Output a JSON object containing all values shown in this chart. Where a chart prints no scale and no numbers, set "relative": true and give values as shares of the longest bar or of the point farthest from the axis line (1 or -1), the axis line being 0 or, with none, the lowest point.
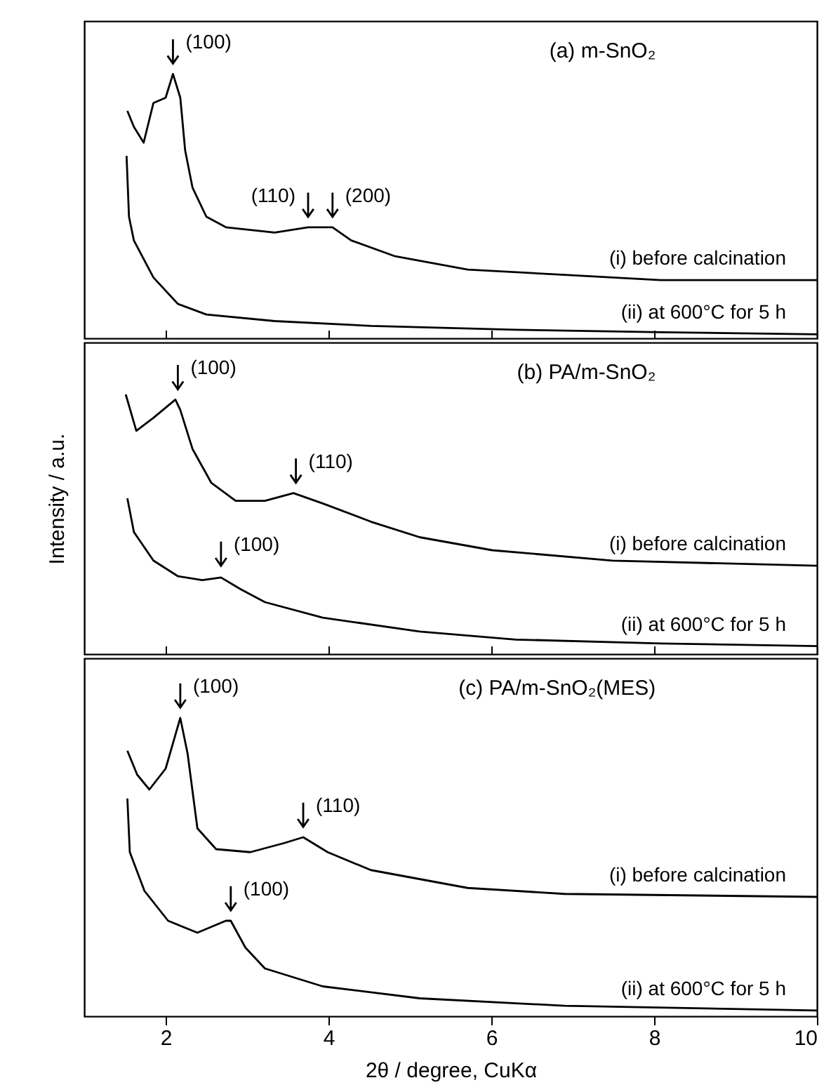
{
  "chart_data": [
    {
      "type": "line",
      "title": "(a) m-SnO₂",
      "relative": true,
      "xlim": [
        1,
        10
      ],
      "xticks": [
        2,
        4,
        6,
        8,
        10
      ],
      "tick_labels": false,
      "series": [
        {
          "name": "(i) before calcination",
          "color": "#000000",
          "x": [
            1.53,
            1.61,
            1.73,
            1.85,
            2.0,
            2.09,
            2.18,
            2.24,
            2.33,
            2.5,
            2.74,
            3.34,
            3.75,
            4.05,
            4.28,
            4.82,
            5.71,
            6.9,
            8.08,
            10
          ],
          "values": [
            0.86,
            0.8,
            0.74,
            0.89,
            0.91,
            1.0,
            0.91,
            0.71,
            0.57,
            0.46,
            0.42,
            0.4,
            0.42,
            0.42,
            0.37,
            0.31,
            0.26,
            0.24,
            0.22,
            0.22
          ]
        },
        {
          "name": "(ii) at 600°C for 5 h",
          "color": "#000000",
          "x": [
            1.52,
            1.55,
            1.61,
            1.85,
            2.15,
            2.5,
            3.34,
            4.52,
            6.3,
            8.08,
            10
          ],
          "values": [
            0.69,
            0.46,
            0.37,
            0.23,
            0.13,
            0.09,
            0.065,
            0.047,
            0.032,
            0.023,
            0.015
          ]
        }
      ],
      "annotations": [
        {
          "text": "(100)",
          "x": 2.09,
          "y": 1.0
        },
        {
          "text": "(110)",
          "x": 3.75,
          "y": 0.42
        },
        {
          "text": "(200)",
          "x": 4.05,
          "y": 0.42
        }
      ]
    },
    {
      "type": "line",
      "title": "(b) PA/m-SnO₂",
      "ylabel": "Intensity / a.u.",
      "relative": true,
      "xlim": [
        1,
        10
      ],
      "xticks": [
        2,
        4,
        6,
        8,
        10
      ],
      "tick_labels": false,
      "series": [
        {
          "name": "(i) before calcination",
          "color": "#000000",
          "x": [
            1.51,
            1.64,
            1.85,
            2.12,
            2.18,
            2.33,
            2.56,
            2.86,
            3.22,
            3.57,
            3.93,
            4.52,
            5.12,
            6.01,
            7.49,
            10
          ],
          "values": [
            1.0,
            0.86,
            0.91,
            0.98,
            0.94,
            0.79,
            0.66,
            0.59,
            0.59,
            0.62,
            0.58,
            0.51,
            0.45,
            0.4,
            0.36,
            0.34
          ]
        },
        {
          "name": "(ii) at 600°C for 5 h",
          "color": "#000000",
          "x": [
            1.53,
            1.61,
            1.85,
            2.15,
            2.45,
            2.68,
            2.92,
            3.22,
            3.93,
            5.12,
            6.3,
            8.08,
            10
          ],
          "values": [
            0.6,
            0.47,
            0.36,
            0.3,
            0.285,
            0.295,
            0.25,
            0.2,
            0.14,
            0.087,
            0.056,
            0.041,
            0.031
          ]
        }
      ],
      "annotations": [
        {
          "text": "(100)",
          "x": 2.15,
          "y": 0.98
        },
        {
          "text": "(110)",
          "x": 3.6,
          "y": 0.62
        },
        {
          "text": "(100)",
          "x": 2.68,
          "y": 0.3
        }
      ]
    },
    {
      "type": "line",
      "title": "(c) PA/m-SnO₂(MES)",
      "xlabel": "2θ / degree, CuKα",
      "relative": true,
      "xlim": [
        1,
        10
      ],
      "xticks": [
        2,
        4,
        6,
        8,
        10
      ],
      "tick_labels": "x",
      "series": [
        {
          "name": "(i) before calcination",
          "color": "#000000",
          "x": [
            1.53,
            1.65,
            1.8,
            2.0,
            2.18,
            2.27,
            2.39,
            2.62,
            3.04,
            3.45,
            3.69,
            3.99,
            4.52,
            5.71,
            6.9,
            10
          ],
          "values": [
            0.89,
            0.81,
            0.76,
            0.83,
            1.0,
            0.88,
            0.63,
            0.56,
            0.55,
            0.58,
            0.6,
            0.55,
            0.49,
            0.43,
            0.41,
            0.4
          ]
        },
        {
          "name": "(ii) at 600°C for 5 h",
          "color": "#000000",
          "x": [
            1.53,
            1.56,
            1.74,
            2.03,
            2.39,
            2.74,
            2.8,
            2.98,
            3.22,
            3.93,
            5.12,
            6.9,
            10
          ],
          "values": [
            0.73,
            0.55,
            0.42,
            0.32,
            0.28,
            0.32,
            0.32,
            0.23,
            0.16,
            0.1,
            0.06,
            0.035,
            0.019
          ]
        }
      ],
      "annotations": [
        {
          "text": "(100)",
          "x": 2.18,
          "y": 1.0
        },
        {
          "text": "(110)",
          "x": 3.69,
          "y": 0.6
        },
        {
          "text": "(100)",
          "x": 2.8,
          "y": 0.32
        }
      ]
    }
  ]
}
